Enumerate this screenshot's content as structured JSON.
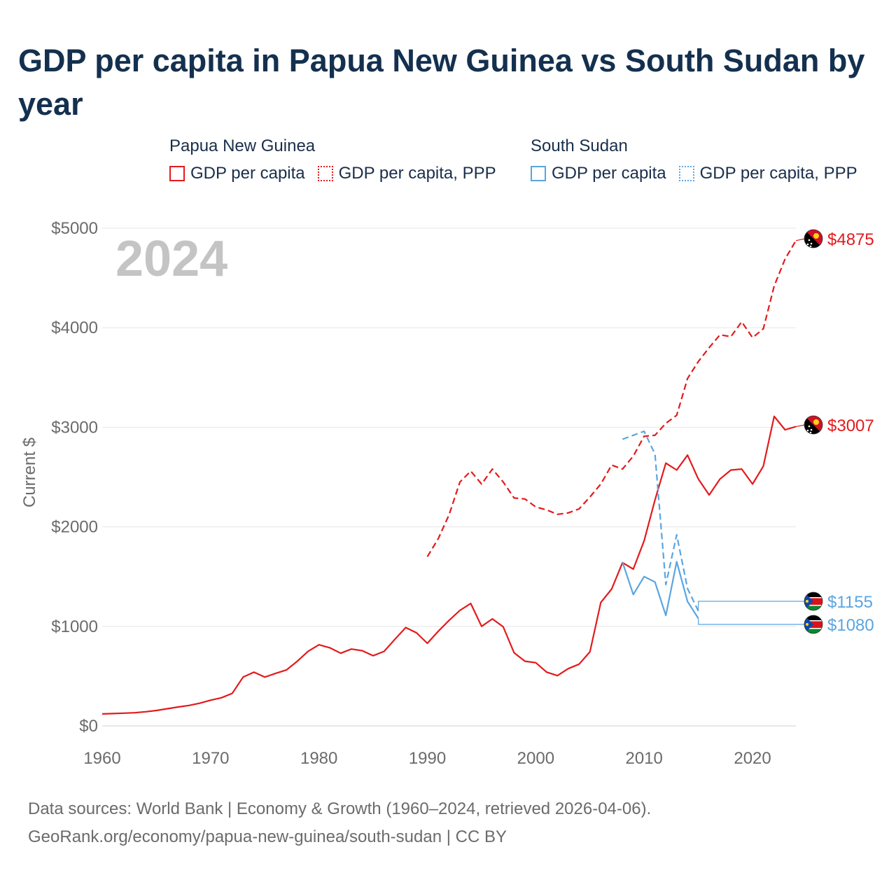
{
  "title": "GDP per capita in Papua New Guinea vs South Sudan by year",
  "legend": {
    "groups": [
      {
        "name": "Papua New Guinea",
        "color": "#e31a1c",
        "items": [
          {
            "label": "GDP per capita",
            "style": "solid"
          },
          {
            "label": "GDP per capita, PPP",
            "style": "dotted"
          }
        ]
      },
      {
        "name": "South Sudan",
        "color": "#5aa5e0",
        "items": [
          {
            "label": "GDP per capita",
            "style": "solid"
          },
          {
            "label": "GDP per capita, PPP",
            "style": "dotted"
          }
        ]
      }
    ]
  },
  "footer": {
    "line1": "Data sources: World Bank | Economy & Growth (1960–2024, retrieved 2026-04-06).",
    "line2": "GeoRank.org/economy/papua-new-guinea/south-sudan | CC BY"
  },
  "chart_data": {
    "type": "line",
    "title": "GDP per capita in Papua New Guinea vs South Sudan by year",
    "year_overlay": "2024",
    "xlabel": "",
    "ylabel": "Current $",
    "xlim": [
      1960,
      2024
    ],
    "ylim": [
      0,
      5000
    ],
    "x_ticks": [
      1960,
      1970,
      1980,
      1990,
      2000,
      2010,
      2020
    ],
    "y_ticks": [
      0,
      1000,
      2000,
      3000,
      4000,
      5000
    ],
    "y_tick_labels": [
      "$0",
      "$1000",
      "$2000",
      "$3000",
      "$4000",
      "$5000"
    ],
    "grid": true,
    "series": [
      {
        "name": "Papua New Guinea — GDP per capita",
        "country": "png",
        "color": "#e31a1c",
        "dash": "solid",
        "end_label": "$3007",
        "x": [
          1960,
          1961,
          1962,
          1963,
          1964,
          1965,
          1966,
          1967,
          1968,
          1969,
          1970,
          1971,
          1972,
          1973,
          1974,
          1975,
          1976,
          1977,
          1978,
          1979,
          1980,
          1981,
          1982,
          1983,
          1984,
          1985,
          1986,
          1987,
          1988,
          1989,
          1990,
          1991,
          1992,
          1993,
          1994,
          1995,
          1996,
          1997,
          1998,
          1999,
          2000,
          2001,
          2002,
          2003,
          2004,
          2005,
          2006,
          2007,
          2008,
          2009,
          2010,
          2011,
          2012,
          2013,
          2014,
          2015,
          2016,
          2017,
          2018,
          2019,
          2020,
          2021,
          2022,
          2023,
          2024
        ],
        "values": [
          120,
          124,
          128,
          132,
          142,
          155,
          172,
          190,
          205,
          228,
          258,
          283,
          327,
          490,
          540,
          490,
          528,
          562,
          650,
          750,
          815,
          785,
          730,
          772,
          755,
          705,
          748,
          870,
          988,
          935,
          830,
          950,
          1060,
          1160,
          1230,
          1000,
          1075,
          995,
          735,
          650,
          635,
          540,
          505,
          575,
          620,
          745,
          1240,
          1375,
          1640,
          1575,
          1860,
          2270,
          2640,
          2570,
          2720,
          2480,
          2320,
          2480,
          2570,
          2580,
          2430,
          2610,
          3110,
          2975,
          3007
        ]
      },
      {
        "name": "Papua New Guinea — GDP per capita, PPP",
        "country": "png",
        "color": "#e31a1c",
        "dash": "dashed",
        "end_label": "$4875",
        "x": [
          1990,
          1991,
          1992,
          1993,
          1994,
          1995,
          1996,
          1997,
          1998,
          1999,
          2000,
          2001,
          2002,
          2003,
          2004,
          2005,
          2006,
          2007,
          2008,
          2009,
          2010,
          2011,
          2012,
          2013,
          2014,
          2015,
          2016,
          2017,
          2018,
          2019,
          2020,
          2021,
          2022,
          2023,
          2024
        ],
        "values": [
          1700,
          1880,
          2120,
          2450,
          2560,
          2430,
          2580,
          2450,
          2290,
          2280,
          2200,
          2170,
          2125,
          2140,
          2180,
          2300,
          2430,
          2620,
          2580,
          2710,
          2910,
          2920,
          3040,
          3120,
          3490,
          3660,
          3800,
          3930,
          3910,
          4060,
          3900,
          3990,
          4420,
          4690,
          4875
        ]
      },
      {
        "name": "South Sudan — GDP per capita",
        "country": "ssd",
        "color": "#5aa5e0",
        "dash": "solid",
        "end_label": "$1080",
        "x": [
          2008,
          2009,
          2010,
          2011,
          2012,
          2013,
          2014,
          2015
        ],
        "values": [
          1645,
          1320,
          1500,
          1445,
          1110,
          1650,
          1250,
          1080
        ]
      },
      {
        "name": "South Sudan — GDP per capita, PPP",
        "country": "ssd",
        "color": "#5aa5e0",
        "dash": "dashed",
        "end_label": "$1155",
        "x": [
          2008,
          2009,
          2010,
          2011,
          2012,
          2013,
          2014,
          2015
        ],
        "values": [
          2880,
          2920,
          2960,
          2730,
          1420,
          1920,
          1380,
          1155
        ]
      }
    ]
  }
}
